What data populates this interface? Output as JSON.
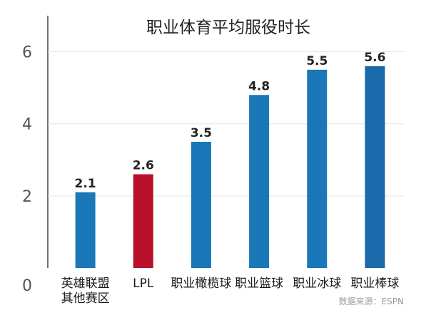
{
  "chart_data": {
    "type": "bar",
    "title": "职业体育平均服役时长",
    "categories": [
      [
        "英雄联盟",
        "其他赛区"
      ],
      [
        "LPL"
      ],
      [
        "职业橄榄球"
      ],
      [
        "职业篮球"
      ],
      [
        "职业冰球"
      ],
      [
        "职业棒球"
      ]
    ],
    "values": [
      2.1,
      2.6,
      3.5,
      4.8,
      5.5,
      5.6
    ],
    "value_labels": [
      "2.1",
      "2.6",
      "3.5",
      "4.8",
      "5.5",
      "5.6"
    ],
    "bar_colors": [
      "#1a77b8",
      "#b8102a",
      "#1a77b8",
      "#1a77b8",
      "#1a77b8",
      "#1a6aab"
    ],
    "yticks": [
      0,
      2,
      4,
      6
    ],
    "ytick_labels": [
      "0",
      "2",
      "4",
      "6"
    ],
    "ylim": [
      0,
      7
    ],
    "grid": true,
    "legend": "none",
    "source": "数据来源：ESPN"
  }
}
